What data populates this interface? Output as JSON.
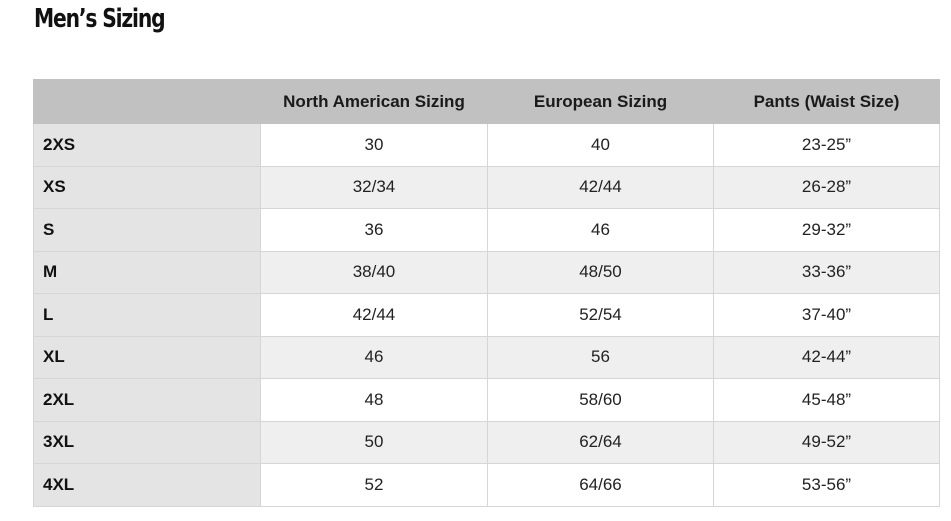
{
  "title": "Men’s Sizing",
  "table": {
    "headers": [
      "",
      "North American Sizing",
      "European Sizing",
      "Pants (Waist Size)"
    ],
    "rows": [
      [
        "2XS",
        "30",
        "40",
        "23-25”"
      ],
      [
        "XS",
        "32/34",
        "42/44",
        "26-28”"
      ],
      [
        "S",
        "36",
        "46",
        "29-32”"
      ],
      [
        "M",
        "38/40",
        "48/50",
        "33-36”"
      ],
      [
        "L",
        "42/44",
        "52/54",
        "37-40”"
      ],
      [
        "XL",
        "46",
        "56",
        "42-44”"
      ],
      [
        "2XL",
        "48",
        "58/60",
        "45-48”"
      ],
      [
        "3XL",
        "50",
        "62/64",
        "49-52”"
      ],
      [
        "4XL",
        "52",
        "64/66",
        "53-56”"
      ]
    ]
  }
}
